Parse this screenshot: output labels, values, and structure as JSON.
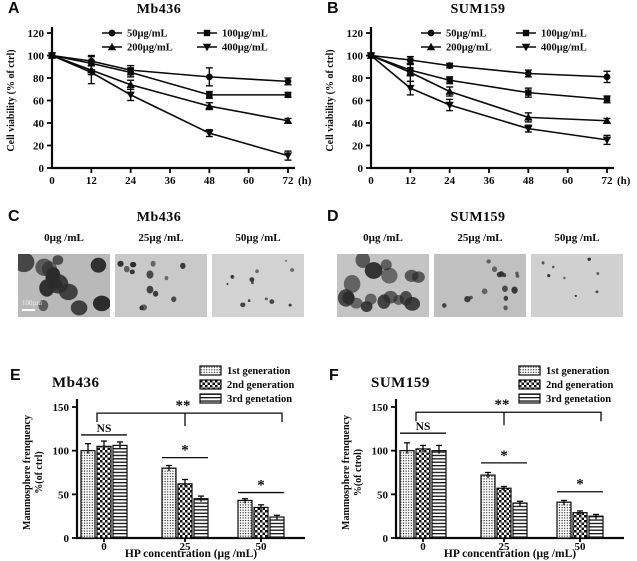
{
  "panels": [
    {
      "letter": "A"
    },
    {
      "letter": "B"
    },
    {
      "letter": "C"
    },
    {
      "letter": "D"
    },
    {
      "letter": "E"
    },
    {
      "letter": "F"
    }
  ],
  "colors": {
    "ink": "#0a0a0a",
    "background": "#ffffff"
  },
  "micrographs": [
    {
      "cell_line": "Mb436",
      "images": [
        {
          "label": "0µg /mL",
          "scalebar": "100µm",
          "bg": "#b9b9b9",
          "sphere_count": 15,
          "r_min": 4.5,
          "r_max": 10,
          "seed": 7
        },
        {
          "label": "25µg /mL",
          "bg": "#c9c9c9",
          "sphere_count": 13,
          "r_min": 2,
          "r_max": 5,
          "seed": 13
        },
        {
          "label": "50µg /mL",
          "bg": "#d2d2d2",
          "sphere_count": 13,
          "r_min": 1,
          "r_max": 2.5,
          "seed": 21
        }
      ]
    },
    {
      "cell_line": "SUM159",
      "images": [
        {
          "label": "0µg /mL",
          "bg": "#c4c4c4",
          "sphere_count": 17,
          "r_min": 4,
          "r_max": 9,
          "seed": 5
        },
        {
          "label": "25µg /mL",
          "bg": "#c0c0c0",
          "sphere_count": 15,
          "r_min": 1.5,
          "r_max": 4,
          "seed": 17
        },
        {
          "label": "50µg /mL",
          "bg": "#d0d0d0",
          "sphere_count": 8,
          "r_min": 1,
          "r_max": 2,
          "seed": 29
        }
      ]
    }
  ],
  "chart_data": [
    {
      "id": "A",
      "type": "line",
      "title": "Mb436",
      "ylabel": "Cell viability (% of ctrl)",
      "xlabel": "(h)",
      "ylim": [
        0,
        120
      ],
      "xlim": [
        0,
        72
      ],
      "yticks": [
        0,
        20,
        40,
        60,
        80,
        100,
        120
      ],
      "xticks": [
        0,
        12,
        24,
        36,
        48,
        60,
        72
      ],
      "x": [
        0,
        12,
        24,
        48,
        72
      ],
      "legend_position": "top",
      "series": [
        {
          "name": "50µg/mL",
          "marker": "circle",
          "values": [
            100,
            95,
            87,
            81,
            77
          ],
          "errors": [
            2,
            4,
            4,
            8,
            3
          ]
        },
        {
          "name": "100µg/mL",
          "marker": "square",
          "values": [
            100,
            93,
            85,
            65,
            65
          ],
          "errors": [
            2,
            7,
            4,
            3,
            2
          ]
        },
        {
          "name": "200µg/mL",
          "marker": "triangle-up",
          "values": [
            100,
            87,
            74,
            55,
            42
          ],
          "errors": [
            2,
            4,
            4,
            3,
            2
          ]
        },
        {
          "name": "400µg/mL",
          "marker": "triangle-down",
          "values": [
            100,
            85,
            65,
            31,
            11
          ],
          "errors": [
            2,
            10,
            5,
            3,
            4
          ]
        }
      ]
    },
    {
      "id": "B",
      "type": "line",
      "title": "SUM159",
      "ylabel": "Cell viability (% of ctrl)",
      "xlabel": "(h)",
      "ylim": [
        0,
        120
      ],
      "xlim": [
        0,
        72
      ],
      "yticks": [
        0,
        20,
        40,
        60,
        80,
        100,
        120
      ],
      "xticks": [
        0,
        12,
        24,
        36,
        48,
        60,
        72
      ],
      "x": [
        0,
        12,
        24,
        48,
        72
      ],
      "legend_position": "top",
      "series": [
        {
          "name": "50µg/mL",
          "marker": "circle",
          "values": [
            100,
            96,
            91,
            84,
            81
          ],
          "errors": [
            2,
            3,
            2,
            3,
            5
          ]
        },
        {
          "name": "100µg/mL",
          "marker": "square",
          "values": [
            100,
            87,
            78,
            67,
            61
          ],
          "errors": [
            2,
            5,
            3,
            4,
            3
          ]
        },
        {
          "name": "200µg/mL",
          "marker": "triangle-up",
          "values": [
            100,
            85,
            68,
            45,
            42
          ],
          "errors": [
            2,
            8,
            4,
            4,
            2
          ]
        },
        {
          "name": "400µg/mL",
          "marker": "triangle-down",
          "values": [
            100,
            71,
            56,
            35,
            25
          ],
          "errors": [
            2,
            6,
            5,
            3,
            4
          ]
        }
      ]
    },
    {
      "id": "E",
      "type": "bar",
      "title": "Mb436",
      "ylabel_line1": "Mammosphere frenquency",
      "ylabel_line2": "%(of ctrl)",
      "xlabel": "HP concentration (µg /mL)",
      "categories": [
        "0",
        "25",
        "50"
      ],
      "ylim": [
        0,
        150
      ],
      "yticks": [
        0,
        50,
        100,
        150
      ],
      "legend_position": "top-right",
      "series": [
        {
          "name": "1st generation",
          "pattern": "stipple",
          "values": [
            100,
            80,
            43
          ],
          "errors": [
            8,
            3,
            2
          ]
        },
        {
          "name": "2nd generation",
          "pattern": "checker",
          "values": [
            105,
            62,
            35
          ],
          "errors": [
            6,
            5,
            3
          ]
        },
        {
          "name": "3rd genetation",
          "pattern": "hlines",
          "values": [
            106,
            45,
            24
          ],
          "errors": [
            4,
            3,
            2
          ]
        }
      ],
      "annotations": {
        "groups": [
          {
            "label": "NS",
            "y": 118
          },
          {
            "label": "*",
            "y": 92
          },
          {
            "label": "*",
            "y": 52
          }
        ],
        "bracket": {
          "label": "**",
          "y": 143,
          "from_group": 0,
          "to_group": 2,
          "tick_group": 1
        }
      }
    },
    {
      "id": "F",
      "type": "bar",
      "title": "SUM159",
      "ylabel_line1": "Mammosphere frenquency",
      "ylabel_line2": "%(of ctrol)",
      "xlabel": "HP concentration (µg /mL)",
      "categories": [
        "0",
        "25",
        "50"
      ],
      "ylim": [
        0,
        150
      ],
      "yticks": [
        0,
        50,
        100,
        150
      ],
      "legend_position": "top-right",
      "series": [
        {
          "name": "1st generation",
          "pattern": "stipple",
          "values": [
            100,
            72,
            41
          ],
          "errors": [
            9,
            3,
            2
          ]
        },
        {
          "name": "2nd generation",
          "pattern": "checker",
          "values": [
            102,
            57,
            29
          ],
          "errors": [
            4,
            2,
            2
          ]
        },
        {
          "name": "3rd genetation",
          "pattern": "hlines",
          "values": [
            100,
            40,
            25
          ],
          "errors": [
            6,
            2,
            2
          ]
        }
      ],
      "annotations": {
        "groups": [
          {
            "label": "NS",
            "y": 120
          },
          {
            "label": "*",
            "y": 86
          },
          {
            "label": "*",
            "y": 53
          }
        ],
        "bracket": {
          "label": "**",
          "y": 144,
          "from_group": 0,
          "to_group": 2,
          "tick_group": 1
        }
      }
    }
  ]
}
